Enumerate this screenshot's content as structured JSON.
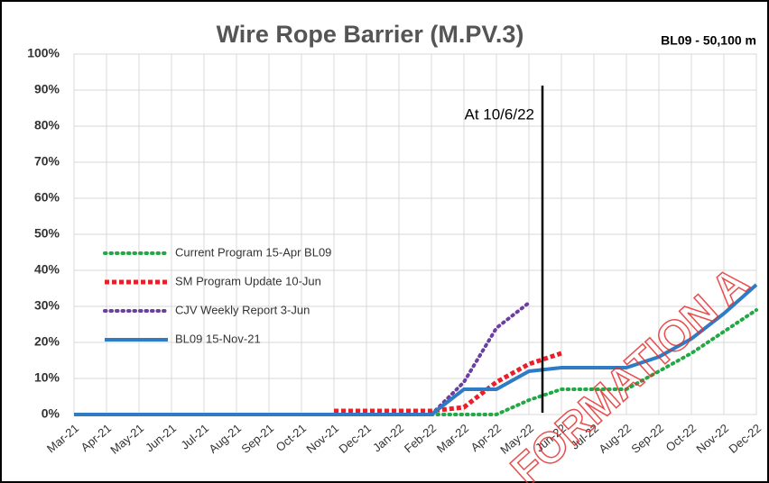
{
  "chart_data": {
    "type": "line",
    "title": "Wire Rope Barrier (M.PV.3)",
    "subtitle": "BL09 - 50,100 m",
    "annotation": "At 10/6/22",
    "watermark": "FORMATION A",
    "categories": [
      "Mar-21",
      "Apr-21",
      "May-21",
      "Jun-21",
      "Jul-21",
      "Aug-21",
      "Sep-21",
      "Oct-21",
      "Nov-21",
      "Dec-21",
      "Jan-22",
      "Feb-22",
      "Mar-22",
      "Apr-22",
      "May-22",
      "Jun-22",
      "Jul-22",
      "Aug-22",
      "Sep-22",
      "Oct-22",
      "Nov-22",
      "Dec-22"
    ],
    "series": [
      {
        "name": "Current Program 15-Apr BL09",
        "color": "#22a845",
        "style": "dotted",
        "values": [
          null,
          null,
          null,
          null,
          null,
          null,
          null,
          null,
          null,
          null,
          null,
          0,
          0,
          0,
          4,
          7,
          7,
          7,
          12,
          17,
          23,
          29
        ]
      },
      {
        "name": "SM Program Update 10-Jun",
        "color": "#e8202a",
        "style": "dashed",
        "values": [
          null,
          null,
          null,
          null,
          null,
          null,
          null,
          null,
          1,
          1,
          1,
          1,
          2,
          9,
          14,
          17,
          null,
          null,
          null,
          null,
          null,
          null
        ]
      },
      {
        "name": "CJV Weekly Report 3-Jun",
        "color": "#6a3fa0",
        "style": "dotted",
        "values": [
          null,
          null,
          null,
          null,
          null,
          null,
          null,
          null,
          null,
          null,
          null,
          0,
          9,
          24,
          31,
          null,
          null,
          null,
          null,
          null,
          null,
          null
        ]
      },
      {
        "name": "BL09 15-Nov-21",
        "color": "#2f7bc4",
        "style": "solid",
        "values": [
          0,
          0,
          0,
          0,
          0,
          0,
          0,
          0,
          0,
          0,
          0,
          0,
          7,
          7,
          12,
          13,
          13,
          13,
          16,
          21,
          28,
          36
        ]
      }
    ],
    "ylim": [
      0,
      100
    ],
    "yticks": [
      {
        "value": 0,
        "label": "0%"
      },
      {
        "value": 10,
        "label": "10%"
      },
      {
        "value": 20,
        "label": "20%"
      },
      {
        "value": 30,
        "label": "30%"
      },
      {
        "value": 40,
        "label": "40%"
      },
      {
        "value": 50,
        "label": "50%"
      },
      {
        "value": 60,
        "label": "60%"
      },
      {
        "value": 70,
        "label": "70%"
      },
      {
        "value": 80,
        "label": "80%"
      },
      {
        "value": 90,
        "label": "90%"
      },
      {
        "value": 100,
        "label": "100%"
      }
    ],
    "grid": true
  }
}
